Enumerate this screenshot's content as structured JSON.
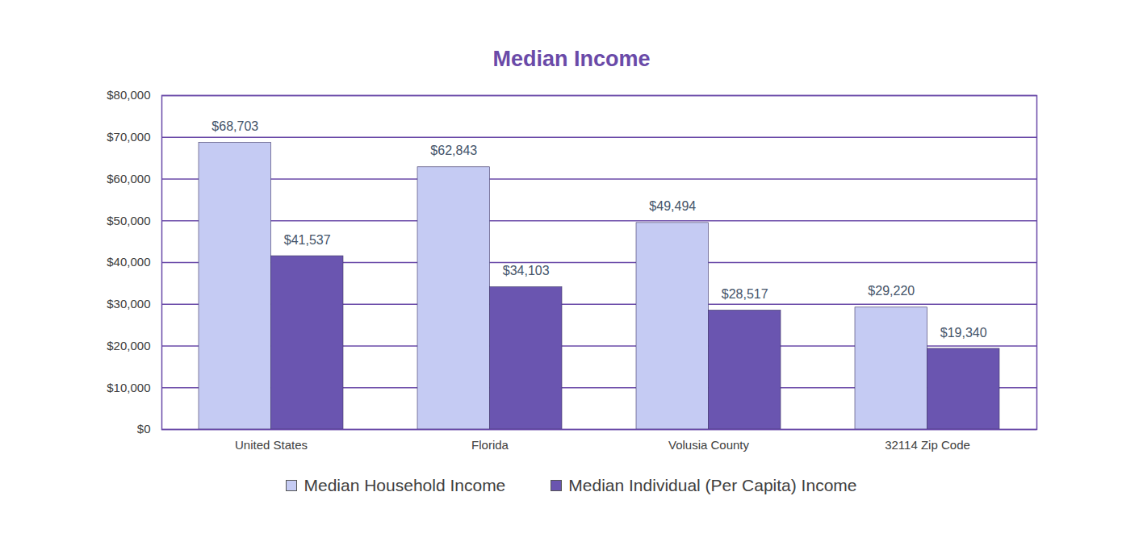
{
  "chart_data": {
    "type": "bar",
    "title": "Median Income",
    "categories": [
      "United States",
      "Florida",
      "Volusia County",
      "32114 Zip Code"
    ],
    "series": [
      {
        "name": "Median Household Income",
        "color": "#c5cbf3",
        "values": [
          68703,
          62843,
          49494,
          29220
        ],
        "value_labels": [
          "$68,703",
          "$62,843",
          "$49,494",
          "$29,220"
        ]
      },
      {
        "name": "Median Individual (Per Capita) Income",
        "color": "#6a55b0",
        "values": [
          41537,
          34103,
          28517,
          19340
        ],
        "value_labels": [
          "$41,537",
          "$34,103",
          "$28,517",
          "$19,340"
        ]
      }
    ],
    "ylim": [
      0,
      80000
    ],
    "yticks": [
      {
        "value": 0,
        "label": "$0"
      },
      {
        "value": 10000,
        "label": "$10,000"
      },
      {
        "value": 20000,
        "label": "$20,000"
      },
      {
        "value": 30000,
        "label": "$30,000"
      },
      {
        "value": 40000,
        "label": "$40,000"
      },
      {
        "value": 50000,
        "label": "$50,000"
      },
      {
        "value": 60000,
        "label": "$60,000"
      },
      {
        "value": 70000,
        "label": "$70,000"
      },
      {
        "value": 80000,
        "label": "$80,000"
      }
    ],
    "grid": true,
    "data_labels": true,
    "legend": "bottom"
  }
}
